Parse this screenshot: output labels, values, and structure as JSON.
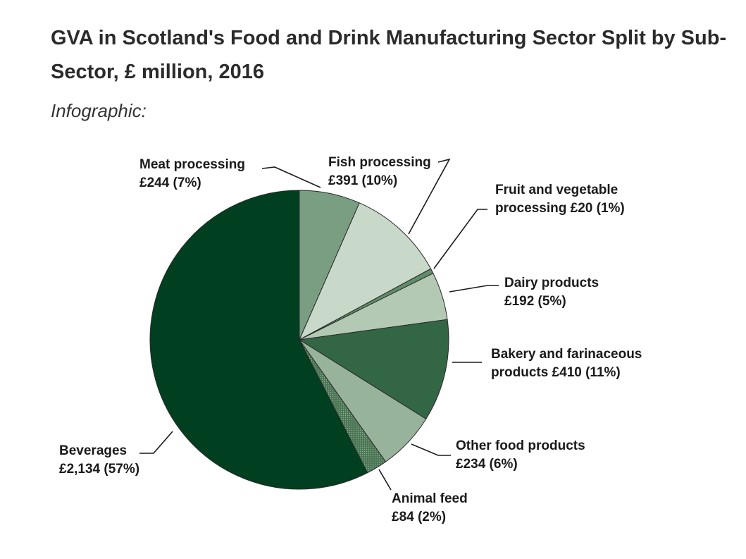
{
  "page": {
    "title": "GVA in Scotland's Food and Drink Manufacturing Sector Split by Sub-Sector, £ million, 2016",
    "subtitle": "Infographic:"
  },
  "chart_data": {
    "type": "pie",
    "unit": "£ million",
    "slices": [
      {
        "name": "Meat processing",
        "value": 244,
        "percent": 7,
        "label_lines": [
          "Meat processing",
          "£244 (7%)"
        ],
        "color": "#7a9e82"
      },
      {
        "name": "Fish processing",
        "value": 391,
        "percent": 10,
        "label_lines": [
          "Fish processing",
          "£391 (10%)"
        ],
        "color": "#c8d8c9"
      },
      {
        "name": "Fruit and vegetable processing",
        "value": 20,
        "percent": 1,
        "label_lines": [
          "Fruit and vegetable",
          "processing £20 (1%)"
        ],
        "color": "#5f8c69"
      },
      {
        "name": "Dairy products",
        "value": 192,
        "percent": 5,
        "label_lines": [
          "Dairy products",
          "£192 (5%)"
        ],
        "color": "#b3c9b4"
      },
      {
        "name": "Bakery and farinaceous products",
        "value": 410,
        "percent": 11,
        "label_lines": [
          "Bakery and farinaceous",
          "products £410 (11%)"
        ],
        "color": "#336644"
      },
      {
        "name": "Other food products",
        "value": 234,
        "percent": 6,
        "label_lines": [
          "Other food products",
          "£234 (6%)"
        ],
        "color": "#98b39c"
      },
      {
        "name": "Animal feed",
        "value": 84,
        "percent": 2,
        "label_lines": [
          "Animal feed",
          "£84 (2%)"
        ],
        "color": "#4a7554"
      },
      {
        "name": "Beverages",
        "value": 2134,
        "percent": 57,
        "label_lines": [
          "Beverages",
          "£2,134 (57%)"
        ],
        "color": "#003f20"
      }
    ],
    "start_angle": "12 o'clock",
    "direction": "clockwise",
    "legend": "none"
  }
}
